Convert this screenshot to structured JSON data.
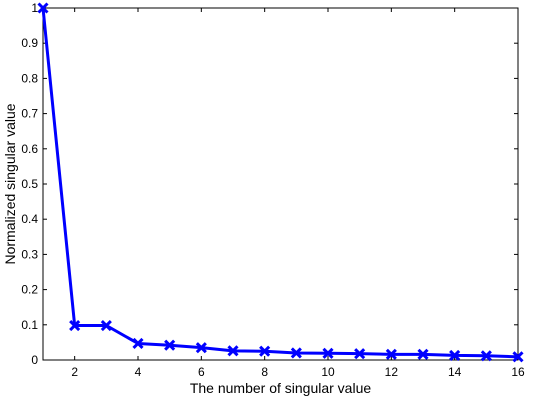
{
  "chart_data": {
    "type": "line",
    "xlabel": "The number of singular value",
    "ylabel": "Normalized singular value",
    "xlim": [
      1,
      16
    ],
    "ylim": [
      0,
      1
    ],
    "x_ticks": [
      2,
      4,
      6,
      8,
      10,
      12,
      14,
      16
    ],
    "y_ticks": [
      0,
      0.1,
      0.2,
      0.3,
      0.4,
      0.5,
      0.6,
      0.7,
      0.8,
      0.9,
      1
    ],
    "y_tick_labels": [
      "0",
      "0.1",
      "0.2",
      "0.3",
      "0.4",
      "0.5",
      "0.6",
      "0.7",
      "0.8",
      "0.9",
      "1"
    ],
    "grid": false,
    "series": [
      {
        "marker": "x",
        "color": "#0000ff",
        "x": [
          1,
          2,
          3,
          4,
          5,
          6,
          7,
          8,
          9,
          10,
          11,
          12,
          13,
          14,
          15,
          16
        ],
        "values": [
          1.0,
          0.098,
          0.098,
          0.047,
          0.042,
          0.035,
          0.026,
          0.025,
          0.02,
          0.019,
          0.018,
          0.016,
          0.016,
          0.013,
          0.012,
          0.009
        ]
      }
    ]
  }
}
